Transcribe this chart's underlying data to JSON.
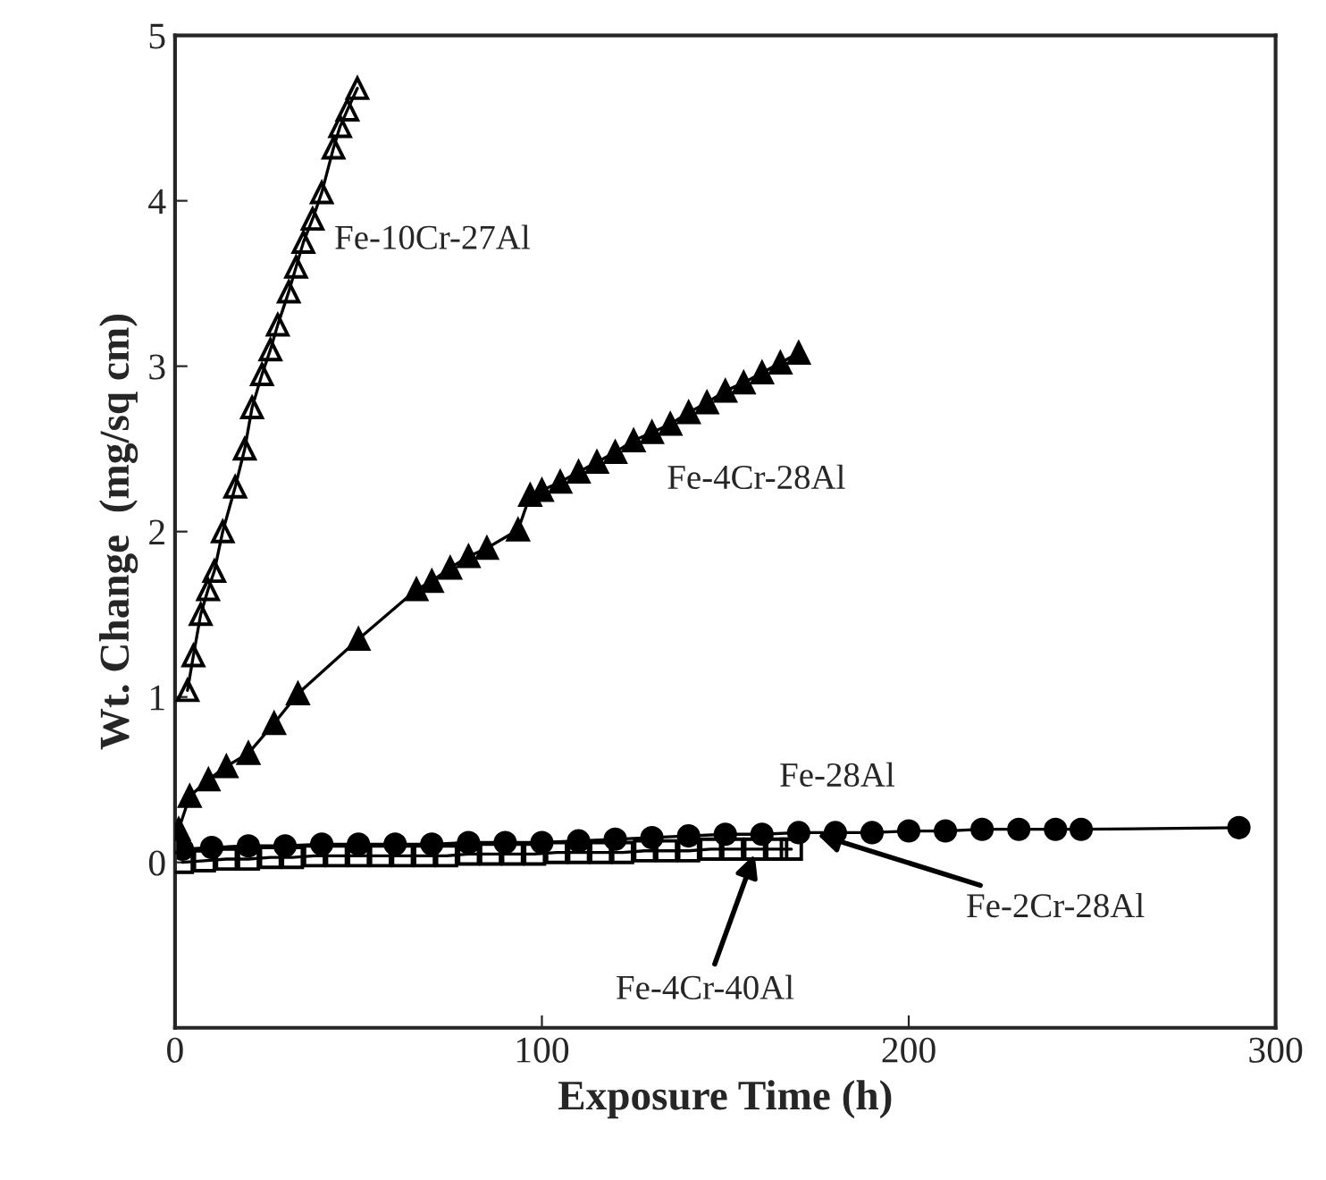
{
  "chart_data": {
    "type": "line",
    "xlabel": "Exposure Time (h)",
    "ylabel": "Wt. Change  (mg/sq cm)",
    "xlim": [
      0,
      300
    ],
    "xticks": [
      0,
      100,
      200,
      300
    ],
    "ylim": [
      -1,
      5
    ],
    "yticks": [
      0,
      1,
      2,
      3,
      4,
      5
    ],
    "grid": false,
    "legend": false,
    "series": [
      {
        "color": "#000000",
        "marker": "triangle",
        "x": [
          3.4,
          5,
          7,
          9,
          10.7,
          13,
          16.4,
          19,
          21,
          23.7,
          26,
          28,
          31,
          33,
          35,
          37.5,
          40,
          43.2,
          45,
          47,
          49.7
        ],
        "values": [
          1.04,
          1.25,
          1.5,
          1.65,
          1.76,
          2.0,
          2.27,
          2.5,
          2.75,
          2.95,
          3.1,
          3.25,
          3.45,
          3.6,
          3.75,
          3.89,
          4.05,
          4.32,
          4.45,
          4.55,
          4.68
        ]
      },
      {
        "color": "#000000",
        "marker": "triangle",
        "x": [
          1,
          4,
          9.1,
          14,
          20,
          27,
          33.5,
          50,
          65.8,
          70,
          75,
          80,
          85,
          93.5,
          96.8,
          100,
          105,
          110,
          115,
          120,
          125,
          130,
          135,
          140,
          145,
          150,
          155,
          160,
          165,
          170
        ],
        "values": [
          0.2,
          0.4,
          0.5,
          0.58,
          0.66,
          0.84,
          1.02,
          1.35,
          1.65,
          1.7,
          1.78,
          1.85,
          1.9,
          2.01,
          2.22,
          2.25,
          2.3,
          2.36,
          2.42,
          2.48,
          2.55,
          2.6,
          2.65,
          2.72,
          2.78,
          2.85,
          2.9,
          2.96,
          3.02,
          3.08
        ]
      },
      {
        "color": "#000000",
        "marker": "circle",
        "x": [
          2,
          10,
          20,
          30,
          40,
          50,
          60,
          70,
          80,
          90,
          100,
          110,
          120,
          130,
          140,
          150,
          160,
          170,
          180,
          190,
          200,
          210,
          220,
          230,
          240,
          247,
          290
        ],
        "values": [
          0.08,
          0.09,
          0.1,
          0.1,
          0.11,
          0.11,
          0.11,
          0.11,
          0.12,
          0.12,
          0.12,
          0.13,
          0.14,
          0.15,
          0.16,
          0.17,
          0.17,
          0.18,
          0.18,
          0.18,
          0.19,
          0.19,
          0.2,
          0.2,
          0.2,
          0.2,
          0.21
        ]
      },
      {
        "color": "#000000",
        "marker": "square",
        "x": [
          2,
          8,
          14,
          20,
          26,
          32,
          38,
          44,
          50,
          56,
          62,
          68,
          74,
          80,
          86,
          92,
          98,
          104,
          110,
          116,
          122,
          128,
          134,
          140,
          146,
          152,
          158,
          164,
          168
        ],
        "values": [
          0.0,
          0.01,
          0.02,
          0.02,
          0.03,
          0.03,
          0.04,
          0.04,
          0.04,
          0.04,
          0.04,
          0.04,
          0.04,
          0.05,
          0.05,
          0.05,
          0.05,
          0.06,
          0.06,
          0.06,
          0.06,
          0.07,
          0.07,
          0.07,
          0.08,
          0.08,
          0.08,
          0.08,
          0.08
        ]
      }
    ],
    "annotations": [
      {
        "text": "Fe-10Cr-27Al",
        "x": 38,
        "y": 3.85
      },
      {
        "text": "Fe-4Cr-28Al",
        "x": 130,
        "y": 2.58
      },
      {
        "text": "Fe-28Al",
        "x": 185,
        "y": 0.18
      },
      {
        "text": "Fe-2Cr-28Al",
        "x": 175,
        "y": 0.17
      },
      {
        "text": "Fe-4Cr-40Al",
        "x": 158,
        "y": 0.05
      }
    ]
  }
}
